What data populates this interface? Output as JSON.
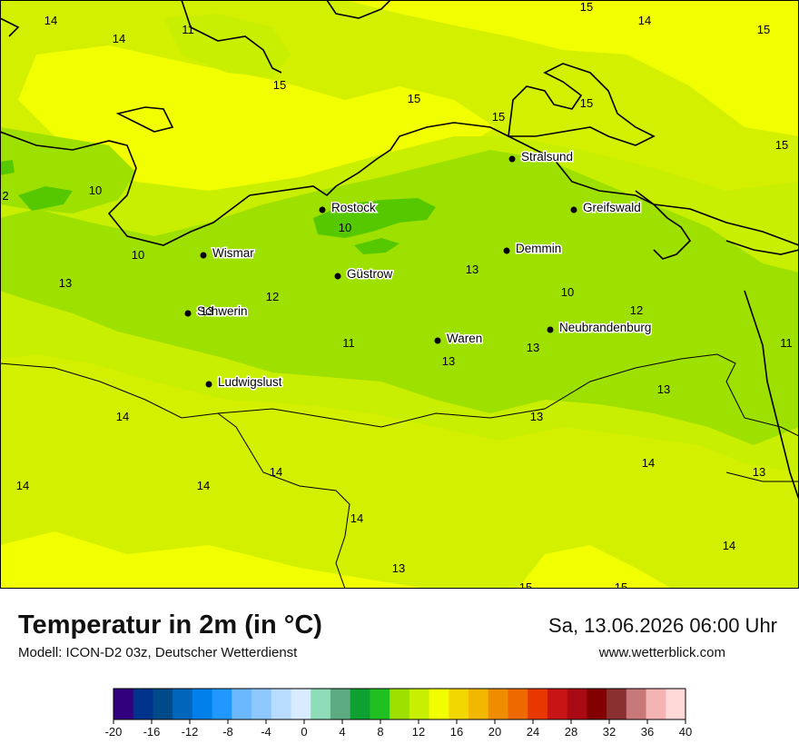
{
  "header": {
    "title": "Temperatur in 2m (in °C)",
    "subtitle": "Modell: ICON-D2 03z, Deutscher Wetterdienst",
    "datetime": "Sa, 13.06.2026 06:00 Uhr",
    "website": "www.wetterblick.com"
  },
  "colors": {
    "t10": "#9ee000",
    "t12": "#c8ee00",
    "t14": "#d2f000",
    "t15": "#f2ff00",
    "t8": "#55c800",
    "t6": "#22b022",
    "coast": "#000000"
  },
  "cities": [
    {
      "name": "Stralsund"
    },
    {
      "name": "Rostock"
    },
    {
      "name": "Greifswald"
    },
    {
      "name": "Wismar"
    },
    {
      "name": "Demmin"
    },
    {
      "name": "Güstrow"
    },
    {
      "name": "Schwerin"
    },
    {
      "name": "Neubrandenburg"
    },
    {
      "name": "Waren"
    },
    {
      "name": "Ludwigslust"
    }
  ],
  "temp_labels": [
    "14",
    "11",
    "14",
    "15",
    "14",
    "15",
    "15",
    "15",
    "15",
    "15",
    "15",
    "10",
    "2",
    "10",
    "10",
    "13",
    "12",
    "13",
    "13",
    "10",
    "12",
    "13",
    "11",
    "13",
    "11",
    "13",
    "14",
    "13",
    "14",
    "13",
    "14",
    "14",
    "14",
    "14",
    "13",
    "14",
    "15",
    "15"
  ],
  "legend": {
    "ticks": [
      "-20",
      "-16",
      "-12",
      "-8",
      "-4",
      "0",
      "4",
      "8",
      "12",
      "16",
      "20",
      "24",
      "28",
      "32",
      "36",
      "40"
    ],
    "colors": [
      "#32007d",
      "#00348c",
      "#004a8a",
      "#0066bb",
      "#0080e8",
      "#2098ff",
      "#6cb8ff",
      "#8ec8ff",
      "#b8dcff",
      "#d8ebff",
      "#8edcb8",
      "#5cab82",
      "#0ea030",
      "#20c020",
      "#9ee000",
      "#c8ee00",
      "#f2ff00",
      "#f2d800",
      "#f2b800",
      "#f08c00",
      "#ee6a00",
      "#e83800",
      "#c81414",
      "#aa0a14",
      "#820000",
      "#8b3030",
      "#c87878",
      "#f4b4b4",
      "#ffd8d8"
    ]
  }
}
